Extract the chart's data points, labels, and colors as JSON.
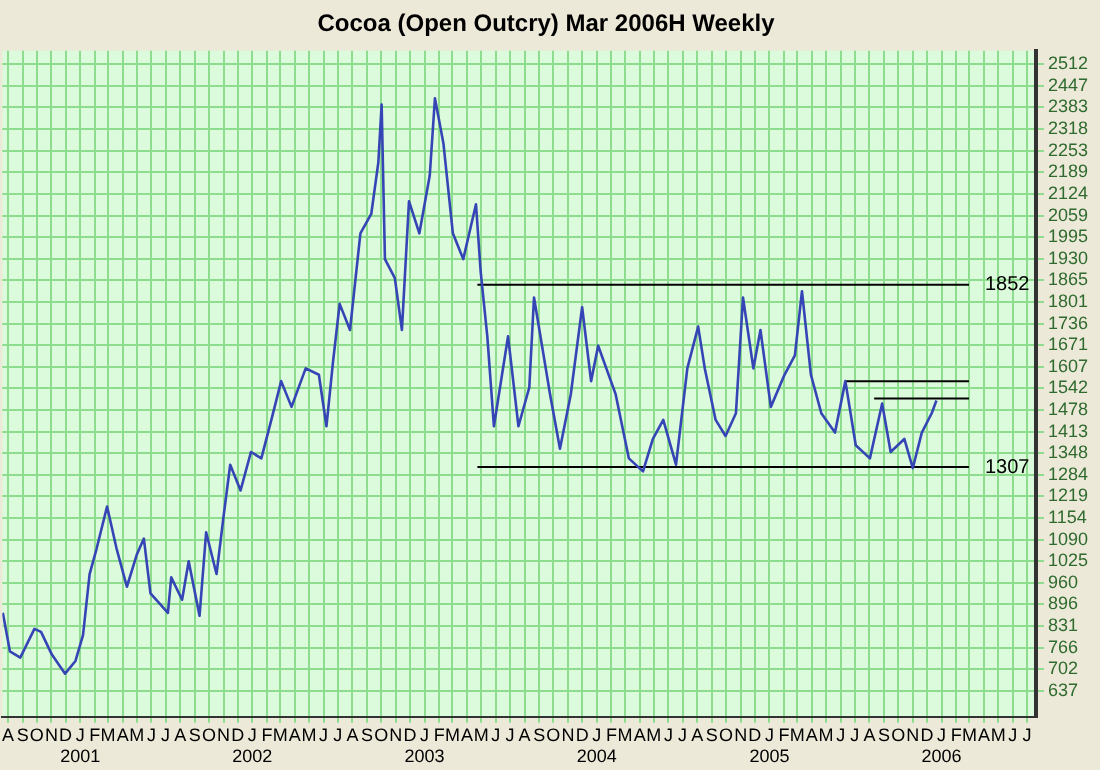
{
  "chart_data": {
    "type": "line",
    "title": "Cocoa (Open Outcry) Mar 2006H Weekly",
    "xlim": [
      "2000-07-20",
      "2006-07-20"
    ],
    "ylim": [
      560,
      2552
    ],
    "yticks": [
      637,
      702,
      766,
      831,
      896,
      960,
      1025,
      1090,
      1154,
      1219,
      1284,
      1348,
      1413,
      1478,
      1542,
      1607,
      1671,
      1736,
      1801,
      1865,
      1930,
      1995,
      2059,
      2124,
      2189,
      2253,
      2318,
      2383,
      2447,
      2512
    ],
    "xticks": [
      {
        "value": "2000-08",
        "label": "A"
      },
      {
        "value": "2000-09",
        "label": "S"
      },
      {
        "value": "2000-10",
        "label": "O"
      },
      {
        "value": "2000-11",
        "label": "N"
      },
      {
        "value": "2000-12",
        "label": "D"
      },
      {
        "value": "2001-01",
        "label": "J\n2001"
      },
      {
        "value": "2001-02",
        "label": "F"
      },
      {
        "value": "2001-03",
        "label": "M"
      },
      {
        "value": "2001-04",
        "label": "A"
      },
      {
        "value": "2001-05",
        "label": "M"
      },
      {
        "value": "2001-06",
        "label": "J"
      },
      {
        "value": "2001-07",
        "label": "J"
      },
      {
        "value": "2001-08",
        "label": "A"
      },
      {
        "value": "2001-09",
        "label": "S"
      },
      {
        "value": "2001-10",
        "label": "O"
      },
      {
        "value": "2001-11",
        "label": "N"
      },
      {
        "value": "2001-12",
        "label": "D"
      },
      {
        "value": "2002-01",
        "label": "J\n2002"
      },
      {
        "value": "2002-02",
        "label": "F"
      },
      {
        "value": "2002-03",
        "label": "M"
      },
      {
        "value": "2002-04",
        "label": "A"
      },
      {
        "value": "2002-05",
        "label": "M"
      },
      {
        "value": "2002-06",
        "label": "J"
      },
      {
        "value": "2002-07",
        "label": "J"
      },
      {
        "value": "2002-08",
        "label": "A"
      },
      {
        "value": "2002-09",
        "label": "S"
      },
      {
        "value": "2002-10",
        "label": "O"
      },
      {
        "value": "2002-11",
        "label": "N"
      },
      {
        "value": "2002-12",
        "label": "D"
      },
      {
        "value": "2003-01",
        "label": "J\n2003"
      },
      {
        "value": "2003-02",
        "label": "F"
      },
      {
        "value": "2003-03",
        "label": "M"
      },
      {
        "value": "2003-04",
        "label": "A"
      },
      {
        "value": "2003-05",
        "label": "M"
      },
      {
        "value": "2003-06",
        "label": "J"
      },
      {
        "value": "2003-07",
        "label": "J"
      },
      {
        "value": "2003-08",
        "label": "A"
      },
      {
        "value": "2003-09",
        "label": "S"
      },
      {
        "value": "2003-10",
        "label": "O"
      },
      {
        "value": "2003-11",
        "label": "N"
      },
      {
        "value": "2003-12",
        "label": "D"
      },
      {
        "value": "2004-01",
        "label": "J\n2004"
      },
      {
        "value": "2004-02",
        "label": "F"
      },
      {
        "value": "2004-03",
        "label": "M"
      },
      {
        "value": "2004-04",
        "label": "A"
      },
      {
        "value": "2004-05",
        "label": "M"
      },
      {
        "value": "2004-06",
        "label": "J"
      },
      {
        "value": "2004-07",
        "label": "J"
      },
      {
        "value": "2004-08",
        "label": "A"
      },
      {
        "value": "2004-09",
        "label": "S"
      },
      {
        "value": "2004-10",
        "label": "O"
      },
      {
        "value": "2004-11",
        "label": "N"
      },
      {
        "value": "2004-12",
        "label": "D"
      },
      {
        "value": "2005-01",
        "label": "J\n2005"
      },
      {
        "value": "2005-02",
        "label": "F"
      },
      {
        "value": "2005-03",
        "label": "M"
      },
      {
        "value": "2005-04",
        "label": "A"
      },
      {
        "value": "2005-05",
        "label": "M"
      },
      {
        "value": "2005-06",
        "label": "J"
      },
      {
        "value": "2005-07",
        "label": "J"
      },
      {
        "value": "2005-08",
        "label": "A"
      },
      {
        "value": "2005-09",
        "label": "S"
      },
      {
        "value": "2005-10",
        "label": "O"
      },
      {
        "value": "2005-11",
        "label": "N"
      },
      {
        "value": "2005-12",
        "label": "D"
      },
      {
        "value": "2006-01",
        "label": "J\n2006"
      },
      {
        "value": "2006-02",
        "label": "F"
      },
      {
        "value": "2006-03",
        "label": "M"
      },
      {
        "value": "2006-04",
        "label": "A"
      },
      {
        "value": "2006-05",
        "label": "M"
      },
      {
        "value": "2006-06",
        "label": "J"
      },
      {
        "value": "2006-07",
        "label": "J"
      }
    ],
    "grid": true,
    "legend": false,
    "marker": "none",
    "line_style": "solid",
    "series": [
      {
        "color": "#3545b5",
        "x": [
          "2000-07-21",
          "2000-08-05",
          "2000-08-27",
          "2000-09-26",
          "2000-10-10",
          "2000-11-02",
          "2000-11-30",
          "2000-12-22",
          "2001-01-07",
          "2001-01-21",
          "2001-02-05",
          "2001-02-27",
          "2001-03-19",
          "2001-04-10",
          "2001-05-01",
          "2001-05-16",
          "2001-05-30",
          "2001-07-06",
          "2001-07-13",
          "2001-08-05",
          "2001-08-19",
          "2001-09-11",
          "2001-09-25",
          "2001-10-17",
          "2001-11-01",
          "2001-11-15",
          "2001-12-07",
          "2001-12-29",
          "2002-01-20",
          "2002-02-12",
          "2002-03-03",
          "2002-03-25",
          "2002-04-24",
          "2002-05-22",
          "2002-06-07",
          "2002-06-21",
          "2002-07-05",
          "2002-07-27",
          "2002-08-18",
          "2002-09-10",
          "2002-09-25",
          "2002-10-02",
          "2002-10-09",
          "2002-10-30",
          "2002-11-14",
          "2002-11-29",
          "2002-12-21",
          "2003-01-12",
          "2003-01-23",
          "2003-02-10",
          "2003-03-02",
          "2003-03-24",
          "2003-04-20",
          "2003-04-30",
          "2003-05-14",
          "2003-05-28",
          "2003-06-27",
          "2003-07-19",
          "2003-08-11",
          "2003-08-21",
          "2003-09-24",
          "2003-10-15",
          "2003-11-07",
          "2003-12-01",
          "2003-12-20",
          "2004-01-04",
          "2004-02-10",
          "2004-03-09",
          "2004-04-08",
          "2004-04-29",
          "2004-05-21",
          "2004-06-17",
          "2004-07-11",
          "2004-08-03",
          "2004-08-17",
          "2004-09-09",
          "2004-09-30",
          "2004-10-22",
          "2004-11-06",
          "2004-11-28",
          "2004-12-13",
          "2005-01-04",
          "2005-02-02",
          "2005-02-24",
          "2005-03-11",
          "2005-03-30",
          "2005-04-21",
          "2005-05-20",
          "2005-06-11",
          "2005-07-03",
          "2005-08-02",
          "2005-08-28",
          "2005-09-15",
          "2005-10-14",
          "2005-11-01",
          "2005-11-20",
          "2005-12-11",
          "2005-12-21"
        ],
        "values": [
          871,
          756,
          737,
          823,
          814,
          746,
          689,
          727,
          804,
          987,
          1064,
          1189,
          1064,
          949,
          1045,
          1093,
          929,
          871,
          977,
          910,
          1025,
          862,
          1112,
          987,
          1160,
          1314,
          1237,
          1352,
          1333,
          1458,
          1564,
          1487,
          1602,
          1583,
          1429,
          1622,
          1795,
          1717,
          2006,
          2064,
          2218,
          2391,
          1929,
          1872,
          1717,
          2102,
          2006,
          2179,
          2410,
          2275,
          2006,
          1929,
          2093,
          1891,
          1698,
          1429,
          1698,
          1429,
          1545,
          1814,
          1525,
          1362,
          1525,
          1785,
          1564,
          1670,
          1525,
          1333,
          1294,
          1391,
          1448,
          1314,
          1602,
          1727,
          1602,
          1448,
          1400,
          1468,
          1814,
          1602,
          1717,
          1487,
          1583,
          1641,
          1833,
          1583,
          1468,
          1410,
          1564,
          1372,
          1333,
          1497,
          1352,
          1391,
          1304,
          1410,
          1468,
          1506
        ]
      },
      {
        "color": "#000000",
        "x": [
          "2003-04-23",
          "2006-02-28"
        ],
        "values": [
          1852,
          1852
        ]
      },
      {
        "color": "#000000",
        "x": [
          "2003-04-23",
          "2006-02-28"
        ],
        "values": [
          1307,
          1307
        ]
      },
      {
        "color": "#000000",
        "x": [
          "2005-06-10",
          "2006-02-28"
        ],
        "values": [
          1564,
          1564
        ]
      },
      {
        "color": "#000000",
        "x": [
          "2005-08-11",
          "2006-02-28"
        ],
        "values": [
          1512,
          1512
        ]
      }
    ],
    "annotations": [
      {
        "text": "1852",
        "x": "2006-02-28",
        "y": 1852
      },
      {
        "text": "1307",
        "x": "2006-02-28",
        "y": 1307
      }
    ]
  }
}
